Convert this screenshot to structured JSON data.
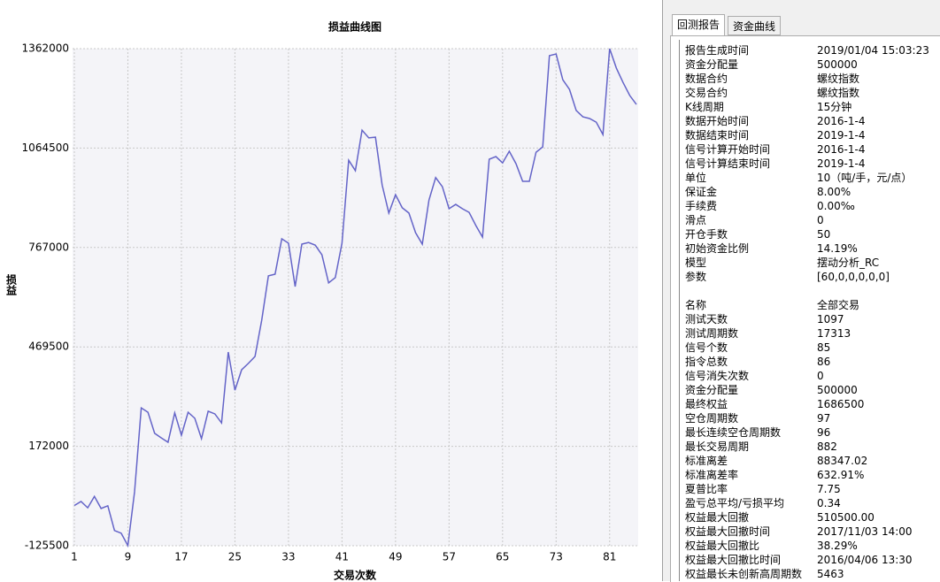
{
  "chart_data": {
    "type": "line",
    "title": "损益曲线图",
    "x_label": "交易次数",
    "y_label": "损益",
    "x": [
      1,
      2,
      3,
      4,
      5,
      6,
      7,
      8,
      9,
      10,
      11,
      12,
      13,
      14,
      15,
      16,
      17,
      18,
      19,
      20,
      21,
      22,
      23,
      24,
      25,
      26,
      27,
      28,
      29,
      30,
      31,
      32,
      33,
      34,
      35,
      36,
      37,
      38,
      39,
      40,
      41,
      42,
      43,
      44,
      45,
      46,
      47,
      48,
      49,
      50,
      51,
      52,
      53,
      54,
      55,
      56,
      57,
      58,
      59,
      60,
      61,
      62,
      63,
      64,
      65,
      66,
      67,
      68,
      69,
      70,
      71,
      72,
      73,
      74,
      75,
      76,
      77,
      78,
      79,
      80,
      81,
      82,
      83,
      84,
      85
    ],
    "series": [
      {
        "color": "#6464c8",
        "values": [
          -5000,
          7000,
          -12000,
          22000,
          -14000,
          -6000,
          -80000,
          -88000,
          -125000,
          36000,
          287000,
          274000,
          211000,
          197000,
          184000,
          272000,
          205000,
          274000,
          256000,
          195000,
          277000,
          269000,
          242000,
          454000,
          340000,
          401000,
          420000,
          441000,
          549000,
          682000,
          687000,
          793000,
          780000,
          650000,
          777000,
          782000,
          774000,
          745000,
          661000,
          677000,
          780000,
          1028000,
          997000,
          1118000,
          1095000,
          1097000,
          954000,
          870000,
          925000,
          886000,
          870000,
          811000,
          777000,
          909000,
          976000,
          949000,
          883000,
          896000,
          883000,
          872000,
          833000,
          798000,
          1031000,
          1039000,
          1020000,
          1055000,
          1018000,
          965000,
          965000,
          1052000,
          1068000,
          1341000,
          1346000,
          1269000,
          1240000,
          1177000,
          1158000,
          1153000,
          1142000,
          1105000,
          1362000,
          1304000,
          1261000,
          1222000,
          1195000
        ]
      }
    ],
    "xlim": [
      1,
      85
    ],
    "xticks": [
      1,
      9,
      17,
      25,
      33,
      41,
      49,
      57,
      65,
      73,
      81
    ],
    "ylim": [
      -125500,
      1362000
    ],
    "yticks": [
      -125500,
      172000,
      469500,
      767000,
      1064500,
      1362000
    ],
    "grid": true
  },
  "panel": {
    "tabs": [
      "回测报告",
      "资金曲线"
    ],
    "settings": [
      [
        "报告生成时间",
        "2019/01/04 15:03:23"
      ],
      [
        "资金分配量",
        "500000"
      ],
      [
        "数据合约",
        "螺纹指数"
      ],
      [
        "交易合约",
        "螺纹指数"
      ],
      [
        "K线周期",
        "15分钟"
      ],
      [
        "数据开始时间",
        "2016-1-4"
      ],
      [
        "数据结束时间",
        "2019-1-4"
      ],
      [
        "信号计算开始时间",
        "2016-1-4"
      ],
      [
        "信号计算结束时间",
        "2019-1-4"
      ],
      [
        "单位",
        "10（吨/手，元/点）"
      ],
      [
        "保证金",
        "8.00%"
      ],
      [
        "手续费",
        "0.00‰"
      ],
      [
        "滑点",
        "0"
      ],
      [
        "开仓手数",
        "50"
      ],
      [
        "初始资金比例",
        "14.19%"
      ],
      [
        "模型",
        "摆动分析_RC"
      ],
      [
        "参数",
        "[60,0,0,0,0,0]"
      ]
    ],
    "stats": [
      [
        "名称",
        "全部交易"
      ],
      [
        "测试天数",
        "1097"
      ],
      [
        "测试周期数",
        "17313"
      ],
      [
        "信号个数",
        "85"
      ],
      [
        "指令总数",
        "86"
      ],
      [
        "信号消失次数",
        "0"
      ],
      [
        "资金分配量",
        "500000"
      ],
      [
        "最终权益",
        "1686500"
      ],
      [
        "空仓周期数",
        "97"
      ],
      [
        "最长连续空仓周期数",
        "96"
      ],
      [
        "最长交易周期",
        "882"
      ],
      [
        "标准离差",
        "88347.02"
      ],
      [
        "标准离差率",
        "632.91%"
      ],
      [
        "夏普比率",
        "7.75"
      ],
      [
        "盈亏总平均/亏损平均",
        "0.34"
      ],
      [
        "权益最大回撤",
        "510500.00"
      ],
      [
        "权益最大回撤时间",
        "2017/11/03 14:00"
      ],
      [
        "权益最大回撤比",
        "38.29%"
      ],
      [
        "权益最大回撤比时间",
        "2016/04/06 13:30"
      ],
      [
        "权益最长未创新高周期数",
        "5463"
      ]
    ]
  }
}
